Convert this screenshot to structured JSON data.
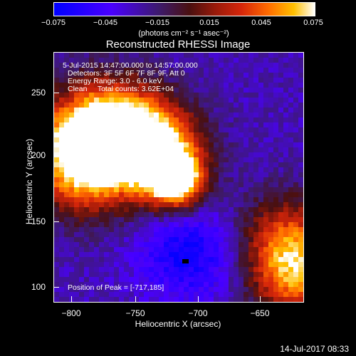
{
  "colorbar": {
    "ticks": [
      "−0.075",
      "−0.045",
      "−0.015",
      "0.015",
      "0.045",
      "0.075"
    ],
    "units": "(photons cm⁻² s⁻¹ asec⁻²)"
  },
  "plot": {
    "title": "Reconstructed RHESSI Image",
    "info_lines": [
      "5-Jul-2015 14:47:00.000 to 14:57:00.000",
      "Detectors: 3F 5F 6F 7F 8F 9F, Att 0",
      "Energy Range: 3.0 - 6.0 keV",
      "Clean     Total counts: 3.62E+04"
    ],
    "peak_label": "Position of Peak = [-717,185]",
    "xlabel": "Heliocentric X (arcsec)",
    "ylabel": "Heliocentric Y (arcsec)",
    "xticks": [
      "−800",
      "−750",
      "−700",
      "−650"
    ],
    "yticks": [
      "250",
      "200",
      "150",
      "100"
    ]
  },
  "timestamp": "14-Jul-2017 08:33",
  "colors": {
    "background": "#000000",
    "foreground": "#ffffff",
    "min": "#0000ff",
    "max": "#ffffff"
  },
  "chart_data": {
    "type": "heatmap",
    "title": "Reconstructed RHESSI Image",
    "xlabel": "Heliocentric X (arcsec)",
    "ylabel": "Heliocentric Y (arcsec)",
    "xlim": [
      -815,
      -615
    ],
    "ylim": [
      88,
      288
    ],
    "color_range": [
      -0.075,
      0.075
    ],
    "peak": {
      "x": -717,
      "y": 185
    },
    "features": [
      {
        "x": -800,
        "y": 215,
        "level": 0.045
      },
      {
        "x": -770,
        "y": 235,
        "level": 0.04
      },
      {
        "x": -745,
        "y": 215,
        "level": 0.03
      },
      {
        "x": -717,
        "y": 185,
        "level": 0.075
      },
      {
        "x": -730,
        "y": 205,
        "level": 0.05
      },
      {
        "x": -790,
        "y": 190,
        "level": 0.03
      },
      {
        "x": -620,
        "y": 110,
        "level": 0.045
      },
      {
        "x": -630,
        "y": 140,
        "level": 0.02
      },
      {
        "x": -700,
        "y": 125,
        "level": -0.055
      },
      {
        "x": -720,
        "y": 130,
        "level": -0.045
      }
    ]
  }
}
